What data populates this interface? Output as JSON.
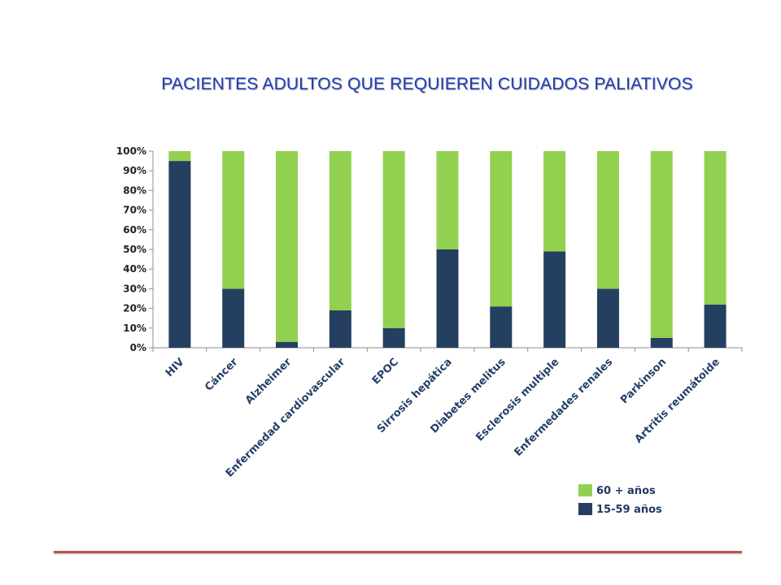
{
  "title": "PACIENTES ADULTOS QUE REQUIEREN CUIDADOS PALIATIVOS",
  "chart_data": {
    "type": "bar",
    "stacked": true,
    "stack_mode": "percent",
    "categories": [
      "HIV",
      "Cáncer",
      "Alzheimer",
      "Enfermedad cardiovascular",
      "EPOC",
      "Sirrosis hepática",
      "Diabetes melitus",
      "Esclerosis multiple",
      "Enfermedades renales",
      "Parkinson",
      "Artritis reumátoide"
    ],
    "series": [
      {
        "name": "15-59 años",
        "color": "#243f60",
        "values": [
          95,
          30,
          3,
          19,
          10,
          50,
          21,
          49,
          30,
          5,
          22
        ]
      },
      {
        "name": "60 + años",
        "color": "#92d050",
        "values": [
          5,
          70,
          97,
          81,
          90,
          50,
          79,
          51,
          70,
          95,
          78
        ]
      }
    ],
    "yticks": [
      "0%",
      "10%",
      "20%",
      "30%",
      "40%",
      "50%",
      "60%",
      "70%",
      "80%",
      "90%",
      "100%"
    ],
    "ylim": [
      0,
      100
    ],
    "grid": false,
    "legend": {
      "position": "bottom-right",
      "entries": [
        {
          "label": "60 + años",
          "color": "#92d050"
        },
        {
          "label": "15-59 años",
          "color": "#243f60"
        }
      ]
    }
  }
}
